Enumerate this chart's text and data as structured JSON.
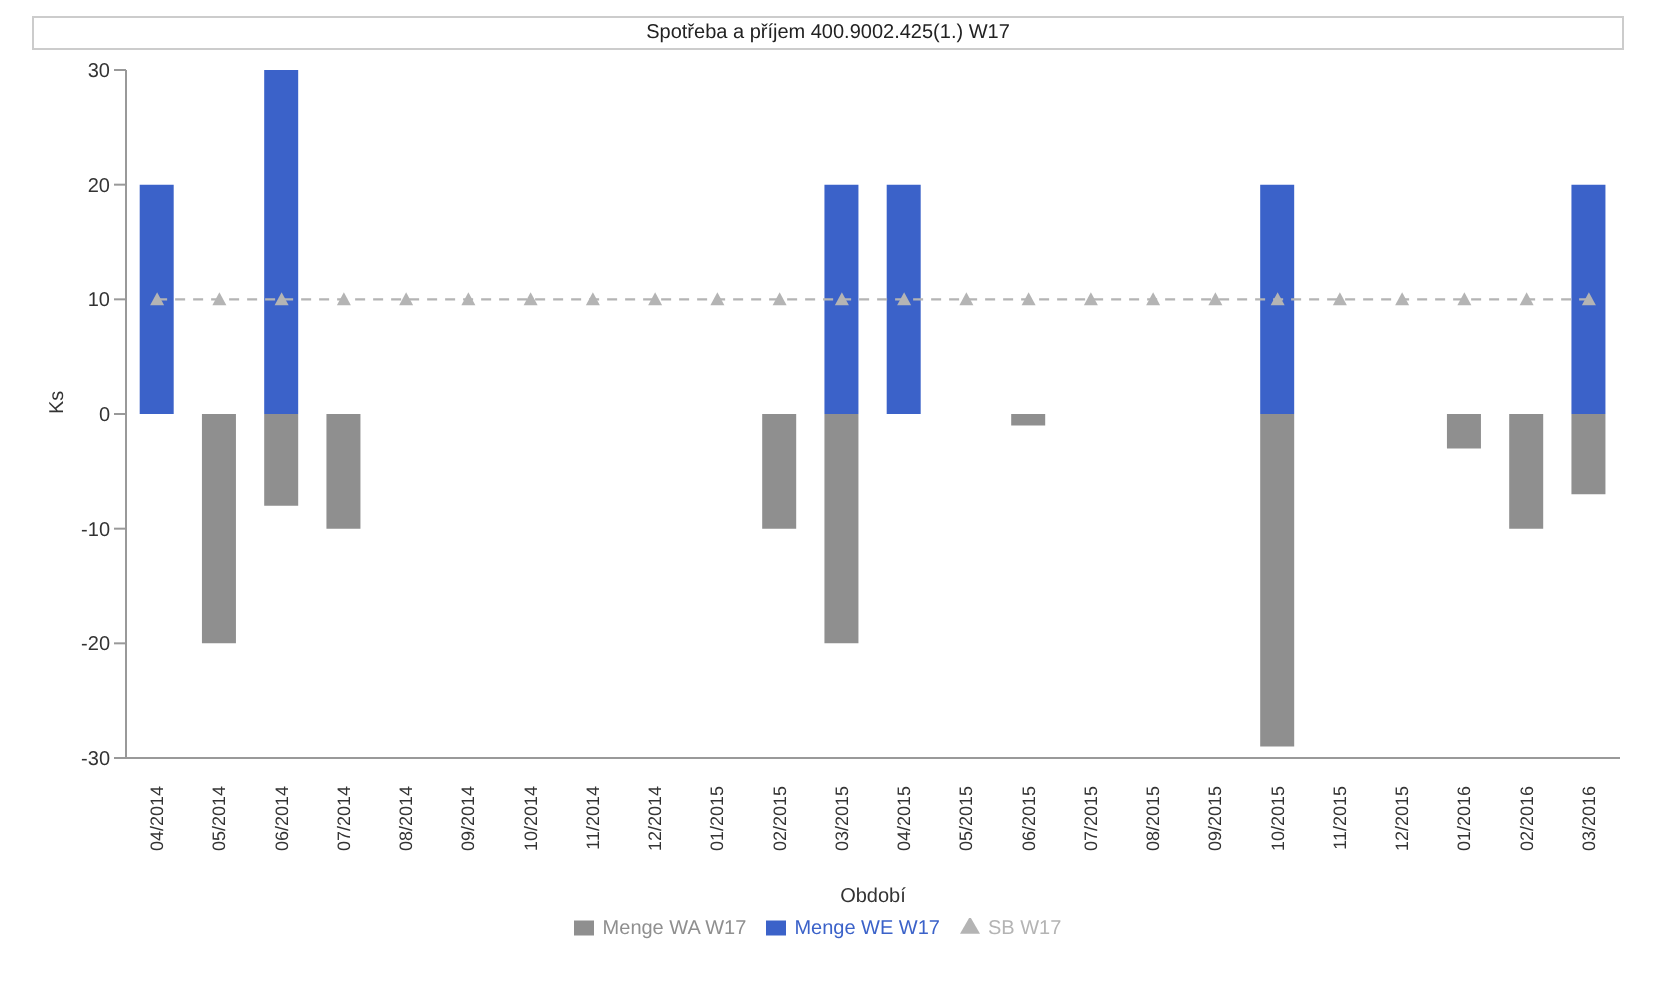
{
  "chart_data": {
    "type": "bar",
    "title": "Spotřeba a příjem 400.9002.425(1.) W17",
    "xlabel": "Období",
    "ylabel": "Ks",
    "categories": [
      "04/2014",
      "05/2014",
      "06/2014",
      "07/2014",
      "08/2014",
      "09/2014",
      "10/2014",
      "11/2014",
      "12/2014",
      "01/2015",
      "02/2015",
      "03/2015",
      "04/2015",
      "05/2015",
      "06/2015",
      "07/2015",
      "08/2015",
      "09/2015",
      "10/2015",
      "11/2015",
      "12/2015",
      "01/2016",
      "02/2016",
      "03/2016"
    ],
    "stacked": true,
    "series": [
      {
        "name": "Menge WA W17",
        "color": "#8f8f8f",
        "values": [
          0,
          -20,
          -8,
          -10,
          0,
          0,
          0,
          0,
          0,
          0,
          -10,
          -20,
          0,
          0,
          -1,
          0,
          0,
          0,
          -29,
          0,
          0,
          -3,
          -10,
          -7
        ]
      },
      {
        "name": "Menge WE W17",
        "color": "#3b62c9",
        "values": [
          20,
          0,
          30,
          0,
          0,
          0,
          0,
          0,
          0,
          0,
          0,
          20,
          20,
          0,
          0,
          0,
          0,
          0,
          20,
          0,
          0,
          0,
          0,
          20
        ]
      },
      {
        "name": "SB W17",
        "type": "line",
        "color": "#b4b4b4",
        "marker": "triangle",
        "line_style": "dashed",
        "values": [
          10,
          10,
          10,
          10,
          10,
          10,
          10,
          10,
          10,
          10,
          10,
          10,
          10,
          10,
          10,
          10,
          10,
          10,
          10,
          10,
          10,
          10,
          10,
          10
        ]
      }
    ],
    "ylim": [
      -30,
      30
    ],
    "yticks": [
      -30,
      -20,
      -10,
      0,
      10,
      20,
      30
    ],
    "grid": false,
    "legend": "bottom"
  }
}
